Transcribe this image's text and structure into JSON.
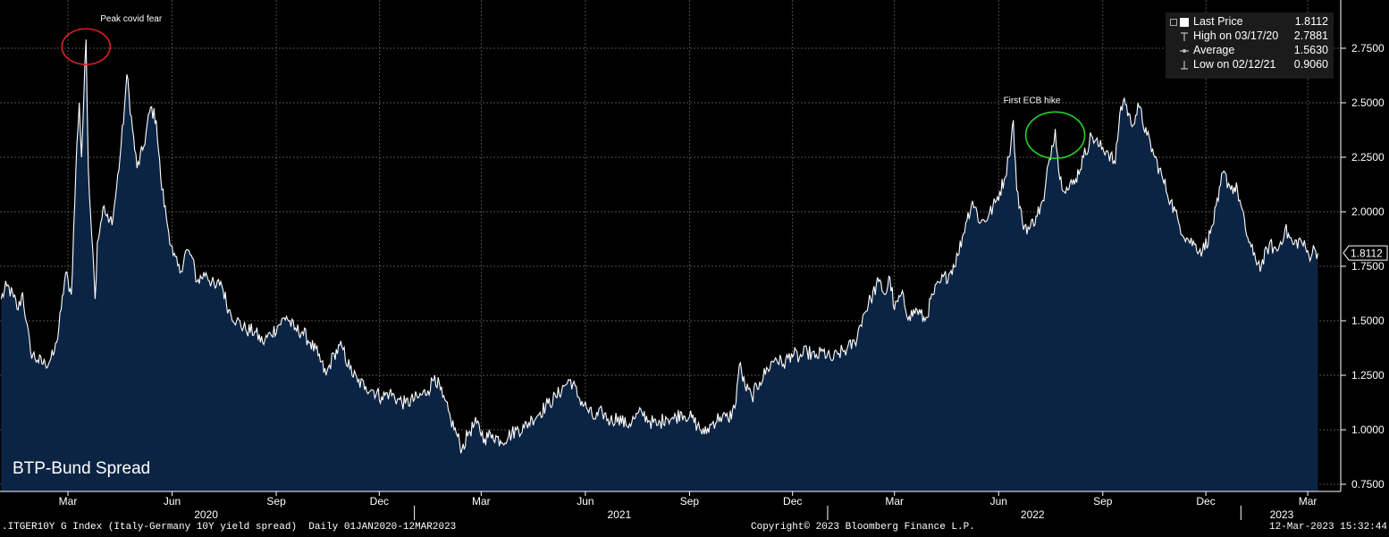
{
  "chart_data": {
    "type": "area",
    "title": "BTP-Bund Spread",
    "ylim": [
      0.7,
      2.95
    ],
    "yticks": [
      "0.7500",
      "1.0000",
      "1.2500",
      "1.5000",
      "1.7500",
      "2.0000",
      "2.2500",
      "2.5000",
      "2.7500"
    ],
    "grid": true,
    "colors": {
      "line": "#ffffff",
      "fill": "#0c2444",
      "background": "#000000",
      "grid": "#6a6a6a"
    },
    "x_ticks": [
      {
        "label": "Mar",
        "date": "2020-03-01"
      },
      {
        "label": "Jun",
        "date": "2020-06-01"
      },
      {
        "label": "Sep",
        "date": "2020-09-01"
      },
      {
        "label": "Dec",
        "date": "2020-12-01"
      },
      {
        "label": "Mar",
        "date": "2021-03-01"
      },
      {
        "label": "Jun",
        "date": "2021-06-01"
      },
      {
        "label": "Sep",
        "date": "2021-09-01"
      },
      {
        "label": "Dec",
        "date": "2021-12-01"
      },
      {
        "label": "Mar",
        "date": "2022-03-01"
      },
      {
        "label": "Jun",
        "date": "2022-06-01"
      },
      {
        "label": "Sep",
        "date": "2022-09-01"
      },
      {
        "label": "Dec",
        "date": "2022-12-01"
      },
      {
        "label": "Mar",
        "date": "2023-03-01"
      }
    ],
    "years": [
      {
        "label": "2020",
        "center": "2020-07-01"
      },
      {
        "label": "2021",
        "center": "2021-07-01"
      },
      {
        "label": "2022",
        "center": "2022-07-01"
      },
      {
        "label": "2023",
        "center": "2023-02-06"
      }
    ],
    "year_dividers": [
      "2021-01-01",
      "2022-01-01",
      "2023-01-01"
    ],
    "series": [
      {
        "values": [
          [
            "2020-01-02",
            1.6
          ],
          [
            "2020-01-07",
            1.66
          ],
          [
            "2020-01-13",
            1.61
          ],
          [
            "2020-01-17",
            1.55
          ],
          [
            "2020-01-21",
            1.63
          ],
          [
            "2020-01-24",
            1.5
          ],
          [
            "2020-01-28",
            1.36
          ],
          [
            "2020-02-03",
            1.32
          ],
          [
            "2020-02-10",
            1.3
          ],
          [
            "2020-02-17",
            1.34
          ],
          [
            "2020-02-20",
            1.4
          ],
          [
            "2020-02-24",
            1.55
          ],
          [
            "2020-02-28",
            1.72
          ],
          [
            "2020-03-04",
            1.62
          ],
          [
            "2020-03-09",
            2.32
          ],
          [
            "2020-03-11",
            2.5
          ],
          [
            "2020-03-13",
            2.25
          ],
          [
            "2020-03-17",
            2.79
          ],
          [
            "2020-03-19",
            2.2
          ],
          [
            "2020-03-23",
            1.82
          ],
          [
            "2020-03-25",
            1.6
          ],
          [
            "2020-03-27",
            1.86
          ],
          [
            "2020-04-01",
            2.02
          ],
          [
            "2020-04-06",
            1.95
          ],
          [
            "2020-04-10",
            1.98
          ],
          [
            "2020-04-16",
            2.25
          ],
          [
            "2020-04-20",
            2.48
          ],
          [
            "2020-04-22",
            2.63
          ],
          [
            "2020-04-27",
            2.38
          ],
          [
            "2020-05-01",
            2.2
          ],
          [
            "2020-05-07",
            2.3
          ],
          [
            "2020-05-13",
            2.48
          ],
          [
            "2020-05-18",
            2.42
          ],
          [
            "2020-05-22",
            2.15
          ],
          [
            "2020-05-27",
            1.97
          ],
          [
            "2020-06-02",
            1.8
          ],
          [
            "2020-06-08",
            1.72
          ],
          [
            "2020-06-13",
            1.82
          ],
          [
            "2020-06-18",
            1.8
          ],
          [
            "2020-06-23",
            1.68
          ],
          [
            "2020-07-01",
            1.72
          ],
          [
            "2020-07-09",
            1.65
          ],
          [
            "2020-07-14",
            1.68
          ],
          [
            "2020-07-21",
            1.55
          ],
          [
            "2020-07-28",
            1.5
          ],
          [
            "2020-08-05",
            1.46
          ],
          [
            "2020-08-13",
            1.45
          ],
          [
            "2020-08-20",
            1.4
          ],
          [
            "2020-08-27",
            1.44
          ],
          [
            "2020-09-03",
            1.48
          ],
          [
            "2020-09-10",
            1.52
          ],
          [
            "2020-09-17",
            1.46
          ],
          [
            "2020-09-24",
            1.45
          ],
          [
            "2020-10-01",
            1.4
          ],
          [
            "2020-10-08",
            1.34
          ],
          [
            "2020-10-15",
            1.25
          ],
          [
            "2020-10-22",
            1.35
          ],
          [
            "2020-10-29",
            1.38
          ],
          [
            "2020-11-05",
            1.28
          ],
          [
            "2020-11-12",
            1.22
          ],
          [
            "2020-11-19",
            1.2
          ],
          [
            "2020-11-26",
            1.18
          ],
          [
            "2020-12-03",
            1.15
          ],
          [
            "2020-12-10",
            1.17
          ],
          [
            "2020-12-17",
            1.14
          ],
          [
            "2020-12-24",
            1.12
          ],
          [
            "2021-01-05",
            1.15
          ],
          [
            "2021-01-13",
            1.18
          ],
          [
            "2021-01-19",
            1.25
          ],
          [
            "2021-01-26",
            1.15
          ],
          [
            "2021-02-02",
            1.05
          ],
          [
            "2021-02-08",
            0.97
          ],
          [
            "2021-02-12",
            0.91
          ],
          [
            "2021-02-18",
            0.99
          ],
          [
            "2021-02-25",
            1.03
          ],
          [
            "2021-03-04",
            0.96
          ],
          [
            "2021-03-11",
            0.98
          ],
          [
            "2021-03-18",
            0.95
          ],
          [
            "2021-03-25",
            0.97
          ],
          [
            "2021-04-01",
            1.0
          ],
          [
            "2021-04-08",
            1.01
          ],
          [
            "2021-04-15",
            1.05
          ],
          [
            "2021-04-22",
            1.08
          ],
          [
            "2021-04-29",
            1.12
          ],
          [
            "2021-05-06",
            1.15
          ],
          [
            "2021-05-13",
            1.2
          ],
          [
            "2021-05-19",
            1.23
          ],
          [
            "2021-05-26",
            1.15
          ],
          [
            "2021-06-02",
            1.1
          ],
          [
            "2021-06-09",
            1.05
          ],
          [
            "2021-06-16",
            1.08
          ],
          [
            "2021-06-23",
            1.04
          ],
          [
            "2021-06-30",
            1.06
          ],
          [
            "2021-07-07",
            1.02
          ],
          [
            "2021-07-14",
            1.05
          ],
          [
            "2021-07-21",
            1.08
          ],
          [
            "2021-07-28",
            1.04
          ],
          [
            "2021-08-04",
            1.02
          ],
          [
            "2021-08-11",
            1.06
          ],
          [
            "2021-08-18",
            1.05
          ],
          [
            "2021-08-25",
            1.08
          ],
          [
            "2021-09-01",
            1.06
          ],
          [
            "2021-09-08",
            1.02
          ],
          [
            "2021-09-14",
            0.98
          ],
          [
            "2021-09-21",
            1.03
          ],
          [
            "2021-09-28",
            1.06
          ],
          [
            "2021-10-05",
            1.05
          ],
          [
            "2021-10-11",
            1.1
          ],
          [
            "2021-10-15",
            1.3
          ],
          [
            "2021-10-20",
            1.2
          ],
          [
            "2021-10-26",
            1.15
          ],
          [
            "2021-11-02",
            1.22
          ],
          [
            "2021-11-09",
            1.28
          ],
          [
            "2021-11-16",
            1.33
          ],
          [
            "2021-11-23",
            1.3
          ],
          [
            "2021-11-30",
            1.35
          ],
          [
            "2021-12-07",
            1.33
          ],
          [
            "2021-12-14",
            1.36
          ],
          [
            "2021-12-21",
            1.33
          ],
          [
            "2021-12-28",
            1.36
          ],
          [
            "2022-01-04",
            1.32
          ],
          [
            "2022-01-11",
            1.35
          ],
          [
            "2022-01-18",
            1.37
          ],
          [
            "2022-01-25",
            1.4
          ],
          [
            "2022-02-01",
            1.52
          ],
          [
            "2022-02-08",
            1.6
          ],
          [
            "2022-02-15",
            1.68
          ],
          [
            "2022-02-21",
            1.62
          ],
          [
            "2022-02-25",
            1.7
          ],
          [
            "2022-03-01",
            1.55
          ],
          [
            "2022-03-07",
            1.62
          ],
          [
            "2022-03-14",
            1.52
          ],
          [
            "2022-03-21",
            1.55
          ],
          [
            "2022-03-28",
            1.5
          ],
          [
            "2022-04-04",
            1.62
          ],
          [
            "2022-04-11",
            1.68
          ],
          [
            "2022-04-19",
            1.72
          ],
          [
            "2022-04-26",
            1.8
          ],
          [
            "2022-05-03",
            1.95
          ],
          [
            "2022-05-09",
            2.05
          ],
          [
            "2022-05-16",
            1.95
          ],
          [
            "2022-05-23",
            1.98
          ],
          [
            "2022-05-30",
            2.05
          ],
          [
            "2022-06-06",
            2.15
          ],
          [
            "2022-06-10",
            2.25
          ],
          [
            "2022-06-14",
            2.42
          ],
          [
            "2022-06-17",
            2.1
          ],
          [
            "2022-06-22",
            1.95
          ],
          [
            "2022-06-28",
            1.92
          ],
          [
            "2022-07-04",
            1.98
          ],
          [
            "2022-07-11",
            2.05
          ],
          [
            "2022-07-15",
            2.22
          ],
          [
            "2022-07-21",
            2.38
          ],
          [
            "2022-07-25",
            2.15
          ],
          [
            "2022-08-01",
            2.1
          ],
          [
            "2022-08-08",
            2.15
          ],
          [
            "2022-08-15",
            2.25
          ],
          [
            "2022-08-22",
            2.35
          ],
          [
            "2022-08-29",
            2.3
          ],
          [
            "2022-09-05",
            2.28
          ],
          [
            "2022-09-12",
            2.22
          ],
          [
            "2022-09-16",
            2.45
          ],
          [
            "2022-09-20",
            2.52
          ],
          [
            "2022-09-26",
            2.4
          ],
          [
            "2022-10-03",
            2.48
          ],
          [
            "2022-10-10",
            2.35
          ],
          [
            "2022-10-17",
            2.25
          ],
          [
            "2022-10-24",
            2.15
          ],
          [
            "2022-10-31",
            2.05
          ],
          [
            "2022-11-07",
            1.95
          ],
          [
            "2022-11-14",
            1.88
          ],
          [
            "2022-11-21",
            1.85
          ],
          [
            "2022-11-28",
            1.82
          ],
          [
            "2022-12-05",
            1.9
          ],
          [
            "2022-12-12",
            2.05
          ],
          [
            "2022-12-16",
            2.18
          ],
          [
            "2022-12-22",
            2.12
          ],
          [
            "2022-12-29",
            2.1
          ],
          [
            "2023-01-05",
            1.92
          ],
          [
            "2023-01-12",
            1.8
          ],
          [
            "2023-01-19",
            1.75
          ],
          [
            "2023-01-26",
            1.85
          ],
          [
            "2023-02-02",
            1.82
          ],
          [
            "2023-02-09",
            1.92
          ],
          [
            "2023-02-16",
            1.85
          ],
          [
            "2023-02-23",
            1.87
          ],
          [
            "2023-03-02",
            1.8
          ],
          [
            "2023-03-07",
            1.83
          ],
          [
            "2023-03-10",
            1.81
          ]
        ]
      }
    ],
    "last_label": "1.8112",
    "annotations": [
      {
        "text": "Peak covid fear",
        "date": "2020-03-17",
        "value": 2.79,
        "color": "#e02020"
      },
      {
        "text": "First ECB hike",
        "date": "2022-07-21",
        "value": 2.38,
        "color": "#28d228"
      }
    ],
    "legend": {
      "placement": "top-right",
      "rows": [
        {
          "label": "Last Price",
          "value": "1.8112",
          "symbol": "square-icon"
        },
        {
          "label": "High on 03/17/20",
          "value": "2.7881",
          "symbol": "high-marker-icon"
        },
        {
          "label": "Average",
          "value": "1.5630",
          "symbol": "average-marker-icon"
        },
        {
          "label": "Low on 02/12/21",
          "value": "0.9060",
          "symbol": "low-marker-icon"
        }
      ]
    }
  },
  "footer": {
    "left": ".ITGER10Y G Index (Italy-Germany 10Y yield spread)  Daily 01JAN2020-12MAR2023",
    "center": "Copyright© 2023 Bloomberg Finance L.P.",
    "right": "12-Mar-2023 15:32:44"
  }
}
